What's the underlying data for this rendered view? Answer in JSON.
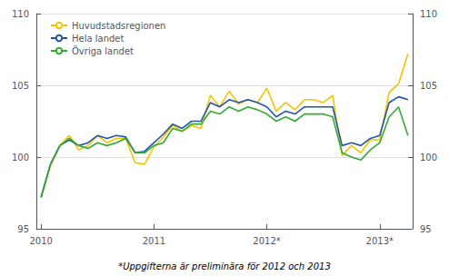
{
  "chart_data": {
    "type": "line",
    "annotations": [
      "*Uppgifterna är preliminära för 2012 och 2013"
    ],
    "categories": [
      "2010",
      null,
      null,
      null,
      null,
      null,
      null,
      null,
      null,
      null,
      null,
      null,
      "2011",
      null,
      null,
      null,
      null,
      null,
      null,
      null,
      null,
      null,
      null,
      null,
      "2012*",
      null,
      null,
      null,
      null,
      null,
      null,
      null,
      null,
      null,
      null,
      null,
      "2013*",
      null,
      null,
      null
    ],
    "series": [
      {
        "name": "Huvudstadsregionen",
        "color": "#f5c400",
        "values": [
          97.2,
          99.4,
          100.8,
          101.5,
          100.5,
          100.8,
          101.5,
          101.0,
          101.3,
          101.3,
          99.6,
          99.5,
          100.7,
          101.4,
          102.2,
          101.8,
          102.2,
          102.0,
          104.3,
          103.5,
          104.6,
          103.7,
          104.0,
          103.8,
          104.8,
          103.2,
          103.8,
          103.3,
          104.0,
          104.0,
          103.8,
          104.3,
          100.1,
          100.8,
          100.3,
          101.2,
          101.2,
          104.5,
          105.1,
          107.2
        ]
      },
      {
        "name": "Hela landet",
        "color": "#2255aa",
        "values": [
          97.2,
          99.5,
          100.8,
          101.2,
          100.8,
          101.0,
          101.5,
          101.3,
          101.5,
          101.4,
          100.3,
          100.4,
          101.0,
          101.6,
          102.3,
          102.0,
          102.5,
          102.5,
          103.8,
          103.5,
          104.0,
          103.8,
          104.0,
          103.8,
          103.5,
          102.8,
          103.2,
          103.0,
          103.5,
          103.5,
          103.5,
          103.5,
          100.8,
          101.0,
          100.8,
          101.3,
          101.5,
          103.8,
          104.2,
          104.0
        ]
      },
      {
        "name": "Övriga landet",
        "color": "#33aa33",
        "values": [
          97.2,
          99.5,
          100.8,
          101.3,
          100.8,
          100.6,
          101.0,
          100.8,
          101.0,
          101.3,
          100.3,
          100.3,
          100.8,
          101.0,
          102.0,
          101.8,
          102.3,
          102.3,
          103.2,
          103.0,
          103.5,
          103.2,
          103.5,
          103.3,
          103.0,
          102.5,
          102.8,
          102.5,
          103.0,
          103.0,
          103.0,
          102.8,
          100.3,
          100.0,
          99.8,
          100.5,
          101.0,
          102.8,
          103.5,
          101.5
        ]
      }
    ],
    "ylim": [
      95,
      110
    ],
    "yticks": [
      95,
      100,
      105,
      110
    ],
    "y2lim": [
      95,
      110
    ],
    "y2ticks": [
      95,
      100,
      105,
      110
    ],
    "grid": true,
    "legend": "upper left"
  }
}
